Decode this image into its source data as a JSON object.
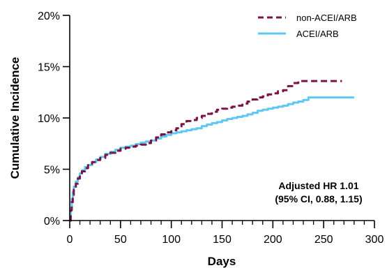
{
  "chart_data": {
    "type": "line",
    "xlabel": "Days",
    "ylabel": "Cumulative Incidence",
    "xlim": [
      0,
      300
    ],
    "ylim": [
      0,
      20
    ],
    "x_ticks": [
      0,
      50,
      100,
      150,
      200,
      250,
      300
    ],
    "x_tick_labels": [
      "0",
      "50",
      "100",
      "150",
      "200",
      "250",
      "300"
    ],
    "x_minor_step": 10,
    "y_ticks": [
      0,
      5,
      10,
      15,
      20
    ],
    "y_tick_labels": [
      "0%",
      "5%",
      "10%",
      "15%",
      "20%"
    ],
    "grid": false,
    "legend_position": "top-right",
    "series": [
      {
        "name": "non-ACEI/ARB",
        "color": "#7b1445",
        "line_style": "dashed",
        "points": [
          [
            0,
            0
          ],
          [
            1,
            1.0
          ],
          [
            2,
            1.8
          ],
          [
            3,
            2.5
          ],
          [
            4,
            3.0
          ],
          [
            6,
            3.6
          ],
          [
            8,
            4.1
          ],
          [
            10,
            4.5
          ],
          [
            12,
            4.8
          ],
          [
            15,
            5.1
          ],
          [
            18,
            5.4
          ],
          [
            22,
            5.7
          ],
          [
            26,
            5.9
          ],
          [
            30,
            6.1
          ],
          [
            35,
            6.4
          ],
          [
            40,
            6.6
          ],
          [
            45,
            6.8
          ],
          [
            50,
            7.0
          ],
          [
            55,
            7.1
          ],
          [
            60,
            7.2
          ],
          [
            65,
            7.3
          ],
          [
            70,
            7.4
          ],
          [
            75,
            7.55
          ],
          [
            80,
            7.8
          ],
          [
            85,
            8.1
          ],
          [
            90,
            8.4
          ],
          [
            95,
            8.6
          ],
          [
            100,
            8.8
          ],
          [
            105,
            9.0
          ],
          [
            110,
            9.4
          ],
          [
            115,
            9.7
          ],
          [
            120,
            9.8
          ],
          [
            125,
            10.0
          ],
          [
            130,
            10.2
          ],
          [
            135,
            10.4
          ],
          [
            140,
            10.6
          ],
          [
            145,
            10.8
          ],
          [
            150,
            10.9
          ],
          [
            155,
            11.0
          ],
          [
            160,
            11.1
          ],
          [
            165,
            11.2
          ],
          [
            170,
            11.4
          ],
          [
            175,
            11.6
          ],
          [
            180,
            11.8
          ],
          [
            185,
            12.0
          ],
          [
            190,
            12.1
          ],
          [
            195,
            12.3
          ],
          [
            200,
            12.4
          ],
          [
            205,
            12.6
          ],
          [
            210,
            12.7
          ],
          [
            215,
            13.1
          ],
          [
            220,
            13.4
          ],
          [
            225,
            13.6
          ],
          [
            230,
            13.6
          ],
          [
            240,
            13.6
          ],
          [
            250,
            13.6
          ],
          [
            260,
            13.6
          ],
          [
            268,
            13.6
          ]
        ]
      },
      {
        "name": "ACEI/ARB",
        "color": "#5fc8f2",
        "line_style": "solid",
        "points": [
          [
            0,
            0
          ],
          [
            1,
            1.2
          ],
          [
            2,
            2.1
          ],
          [
            3,
            2.8
          ],
          [
            4,
            3.3
          ],
          [
            6,
            3.8
          ],
          [
            8,
            4.2
          ],
          [
            10,
            4.6
          ],
          [
            12,
            4.9
          ],
          [
            15,
            5.2
          ],
          [
            18,
            5.4
          ],
          [
            22,
            5.7
          ],
          [
            26,
            5.95
          ],
          [
            30,
            6.2
          ],
          [
            35,
            6.5
          ],
          [
            40,
            6.7
          ],
          [
            45,
            6.9
          ],
          [
            50,
            7.1
          ],
          [
            55,
            7.2
          ],
          [
            60,
            7.3
          ],
          [
            65,
            7.45
          ],
          [
            70,
            7.6
          ],
          [
            75,
            7.7
          ],
          [
            80,
            7.8
          ],
          [
            85,
            8.0
          ],
          [
            90,
            8.2
          ],
          [
            95,
            8.35
          ],
          [
            100,
            8.5
          ],
          [
            105,
            8.6
          ],
          [
            110,
            8.7
          ],
          [
            115,
            8.8
          ],
          [
            120,
            8.9
          ],
          [
            125,
            9.0
          ],
          [
            130,
            9.2
          ],
          [
            135,
            9.35
          ],
          [
            140,
            9.5
          ],
          [
            145,
            9.6
          ],
          [
            150,
            9.75
          ],
          [
            155,
            9.9
          ],
          [
            160,
            10.0
          ],
          [
            165,
            10.1
          ],
          [
            170,
            10.2
          ],
          [
            175,
            10.35
          ],
          [
            180,
            10.5
          ],
          [
            185,
            10.7
          ],
          [
            190,
            10.8
          ],
          [
            195,
            10.9
          ],
          [
            200,
            11.0
          ],
          [
            205,
            11.1
          ],
          [
            210,
            11.2
          ],
          [
            215,
            11.35
          ],
          [
            220,
            11.5
          ],
          [
            225,
            11.6
          ],
          [
            230,
            11.75
          ],
          [
            235,
            12.0
          ],
          [
            240,
            12.0
          ],
          [
            250,
            12.0
          ],
          [
            260,
            12.0
          ],
          [
            270,
            12.0
          ],
          [
            280,
            12.0
          ]
        ]
      }
    ],
    "annotation": [
      "Adjusted HR 1.01",
      "(95% CI, 0.88, 1.15)"
    ]
  }
}
